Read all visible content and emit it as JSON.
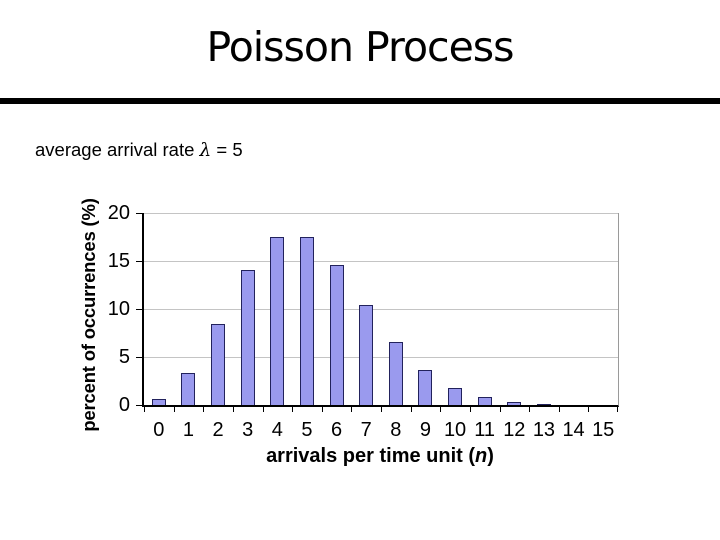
{
  "slide": {
    "title": "Poisson Process",
    "subtitle": {
      "full": "average arrival rate λ = 5",
      "prefix": "average arrival rate",
      "symbol": "λ",
      "suffix": "= 5"
    }
  },
  "chart_data": {
    "type": "bar",
    "title": "",
    "categories": [
      "0",
      "1",
      "2",
      "3",
      "4",
      "5",
      "6",
      "7",
      "8",
      "9",
      "10",
      "11",
      "12",
      "13",
      "14",
      "15"
    ],
    "values": [
      0.67,
      3.37,
      8.42,
      14.04,
      17.55,
      17.55,
      14.62,
      10.44,
      6.53,
      3.63,
      1.81,
      0.82,
      0.34,
      0.13,
      0.05,
      0.02
    ],
    "xlabel": "arrivals per time unit (n)",
    "xlabel_parts": {
      "prefix": "arrivals per time unit (",
      "var": "n",
      "suffix": ")"
    },
    "ylabel": "percent of occurrences (%)",
    "ylim": [
      0,
      20
    ],
    "yticks": [
      0,
      5,
      10,
      15,
      20
    ],
    "grid": true,
    "legend": false,
    "colors": {
      "bar_fill": "#9a9aee",
      "bar_border": "#22225c",
      "gridline": "#c4c4c4",
      "axis": "#000000",
      "plot_right_border": "#9a9a9a",
      "title_text": "#000000",
      "background": "#ffffff"
    }
  }
}
